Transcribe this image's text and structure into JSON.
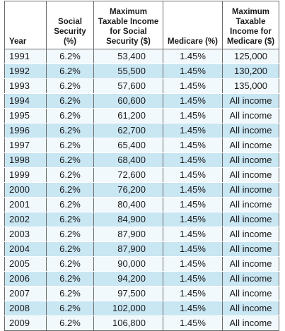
{
  "headers": {
    "year": "Year",
    "social_security_line1": "Social",
    "social_security_line2": "Security (%)",
    "max_ss_line1": "Maximum",
    "max_ss_line2": "Taxable Income",
    "max_ss_line3": "for Social",
    "max_ss_line4": "Security ($)",
    "medicare": "Medicare (%)",
    "max_med_line1": "Maximum",
    "max_med_line2": "Taxable",
    "max_med_line3": "Income for",
    "max_med_line4": "Medicare ($)"
  },
  "rows": [
    {
      "year": "1991",
      "ss": "6.2%",
      "max_ss": "53,400",
      "medicare": "1.45%",
      "max_medicare": "125,000"
    },
    {
      "year": "1992",
      "ss": "6.2%",
      "max_ss": "55,500",
      "medicare": "1.45%",
      "max_medicare": "130,200"
    },
    {
      "year": "1993",
      "ss": "6.2%",
      "max_ss": "57,600",
      "medicare": "1.45%",
      "max_medicare": "135,000"
    },
    {
      "year": "1994",
      "ss": "6.2%",
      "max_ss": "60,600",
      "medicare": "1.45%",
      "max_medicare": "All income"
    },
    {
      "year": "1995",
      "ss": "6.2%",
      "max_ss": "61,200",
      "medicare": "1.45%",
      "max_medicare": "All income"
    },
    {
      "year": "1996",
      "ss": "6.2%",
      "max_ss": "62,700",
      "medicare": "1.45%",
      "max_medicare": "All income"
    },
    {
      "year": "1997",
      "ss": "6.2%",
      "max_ss": "65,400",
      "medicare": "1.45%",
      "max_medicare": "All income"
    },
    {
      "year": "1998",
      "ss": "6.2%",
      "max_ss": "68,400",
      "medicare": "1.45%",
      "max_medicare": "All income"
    },
    {
      "year": "1999",
      "ss": "6.2%",
      "max_ss": "72,600",
      "medicare": "1.45%",
      "max_medicare": "All income"
    },
    {
      "year": "2000",
      "ss": "6.2%",
      "max_ss": "76,200",
      "medicare": "1.45%",
      "max_medicare": "All income"
    },
    {
      "year": "2001",
      "ss": "6.2%",
      "max_ss": "80,400",
      "medicare": "1.45%",
      "max_medicare": "All income"
    },
    {
      "year": "2002",
      "ss": "6.2%",
      "max_ss": "84,900",
      "medicare": "1.45%",
      "max_medicare": "All income"
    },
    {
      "year": "2003",
      "ss": "6.2%",
      "max_ss": "87,900",
      "medicare": "1.45%",
      "max_medicare": "All income"
    },
    {
      "year": "2004",
      "ss": "6.2%",
      "max_ss": "87,900",
      "medicare": "1.45%",
      "max_medicare": "All income"
    },
    {
      "year": "2005",
      "ss": "6.2%",
      "max_ss": "90,000",
      "medicare": "1.45%",
      "max_medicare": "All income"
    },
    {
      "year": "2006",
      "ss": "6.2%",
      "max_ss": "94,200",
      "medicare": "1.45%",
      "max_medicare": "All income"
    },
    {
      "year": "2007",
      "ss": "6.2%",
      "max_ss": "97,500",
      "medicare": "1.45%",
      "max_medicare": "All income"
    },
    {
      "year": "2008",
      "ss": "6.2%",
      "max_ss": "102,000",
      "medicare": "1.45%",
      "max_medicare": "All income"
    },
    {
      "year": "2009",
      "ss": "6.2%",
      "max_ss": "106,800",
      "medicare": "1.45%",
      "max_medicare": "All income"
    }
  ],
  "colors": {
    "row_light": "#f2f9fc",
    "row_dark": "#c9e6f3",
    "border": "#6b6b6b",
    "text": "#1a1a1a"
  }
}
